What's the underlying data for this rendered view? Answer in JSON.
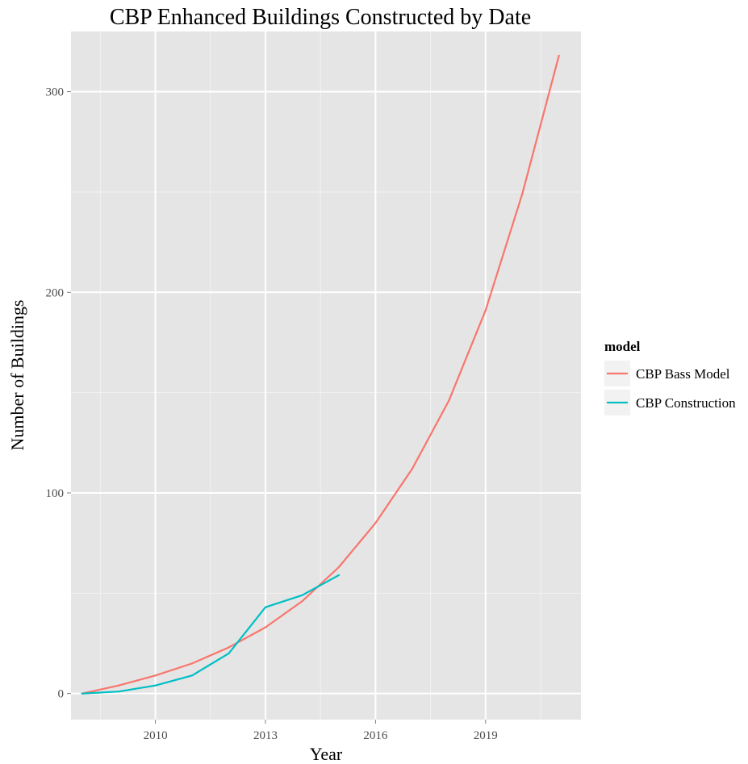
{
  "chart_data": {
    "type": "line",
    "title": "CBP Enhanced Buildings Constructed by Date",
    "xlabel": "Year",
    "ylabel": "Number of Buildings",
    "xlim": [
      2007.7,
      2021.6
    ],
    "ylim": [
      -13,
      330
    ],
    "x_ticks": [
      2010,
      2013,
      2016,
      2019
    ],
    "y_ticks": [
      0,
      100,
      200,
      300
    ],
    "x_tick_labels": [
      "2010",
      "2013",
      "2016",
      "2019"
    ],
    "y_tick_labels": [
      "0",
      "100",
      "200",
      "300"
    ],
    "grid": true,
    "legend": {
      "title": "model",
      "position": "right"
    },
    "colors": {
      "panel_background": "#e5e5e5",
      "grid_major": "#ffffff",
      "grid_minor": "#f2f2f2"
    },
    "series": [
      {
        "name": "CBP Bass Model",
        "color": "#f8766d",
        "x": [
          2008,
          2009,
          2010,
          2011,
          2012,
          2013,
          2014,
          2015,
          2016,
          2017,
          2018,
          2019,
          2020,
          2021
        ],
        "y": [
          0,
          4,
          9,
          15,
          23,
          33,
          46,
          63,
          85,
          112,
          146,
          191,
          249,
          318
        ]
      },
      {
        "name": "CBP Construction",
        "color": "#00bfc4",
        "x": [
          2008,
          2009,
          2010,
          2011,
          2012,
          2013,
          2014,
          2015
        ],
        "y": [
          0,
          1,
          4,
          9,
          20,
          43,
          49,
          59
        ]
      }
    ]
  }
}
